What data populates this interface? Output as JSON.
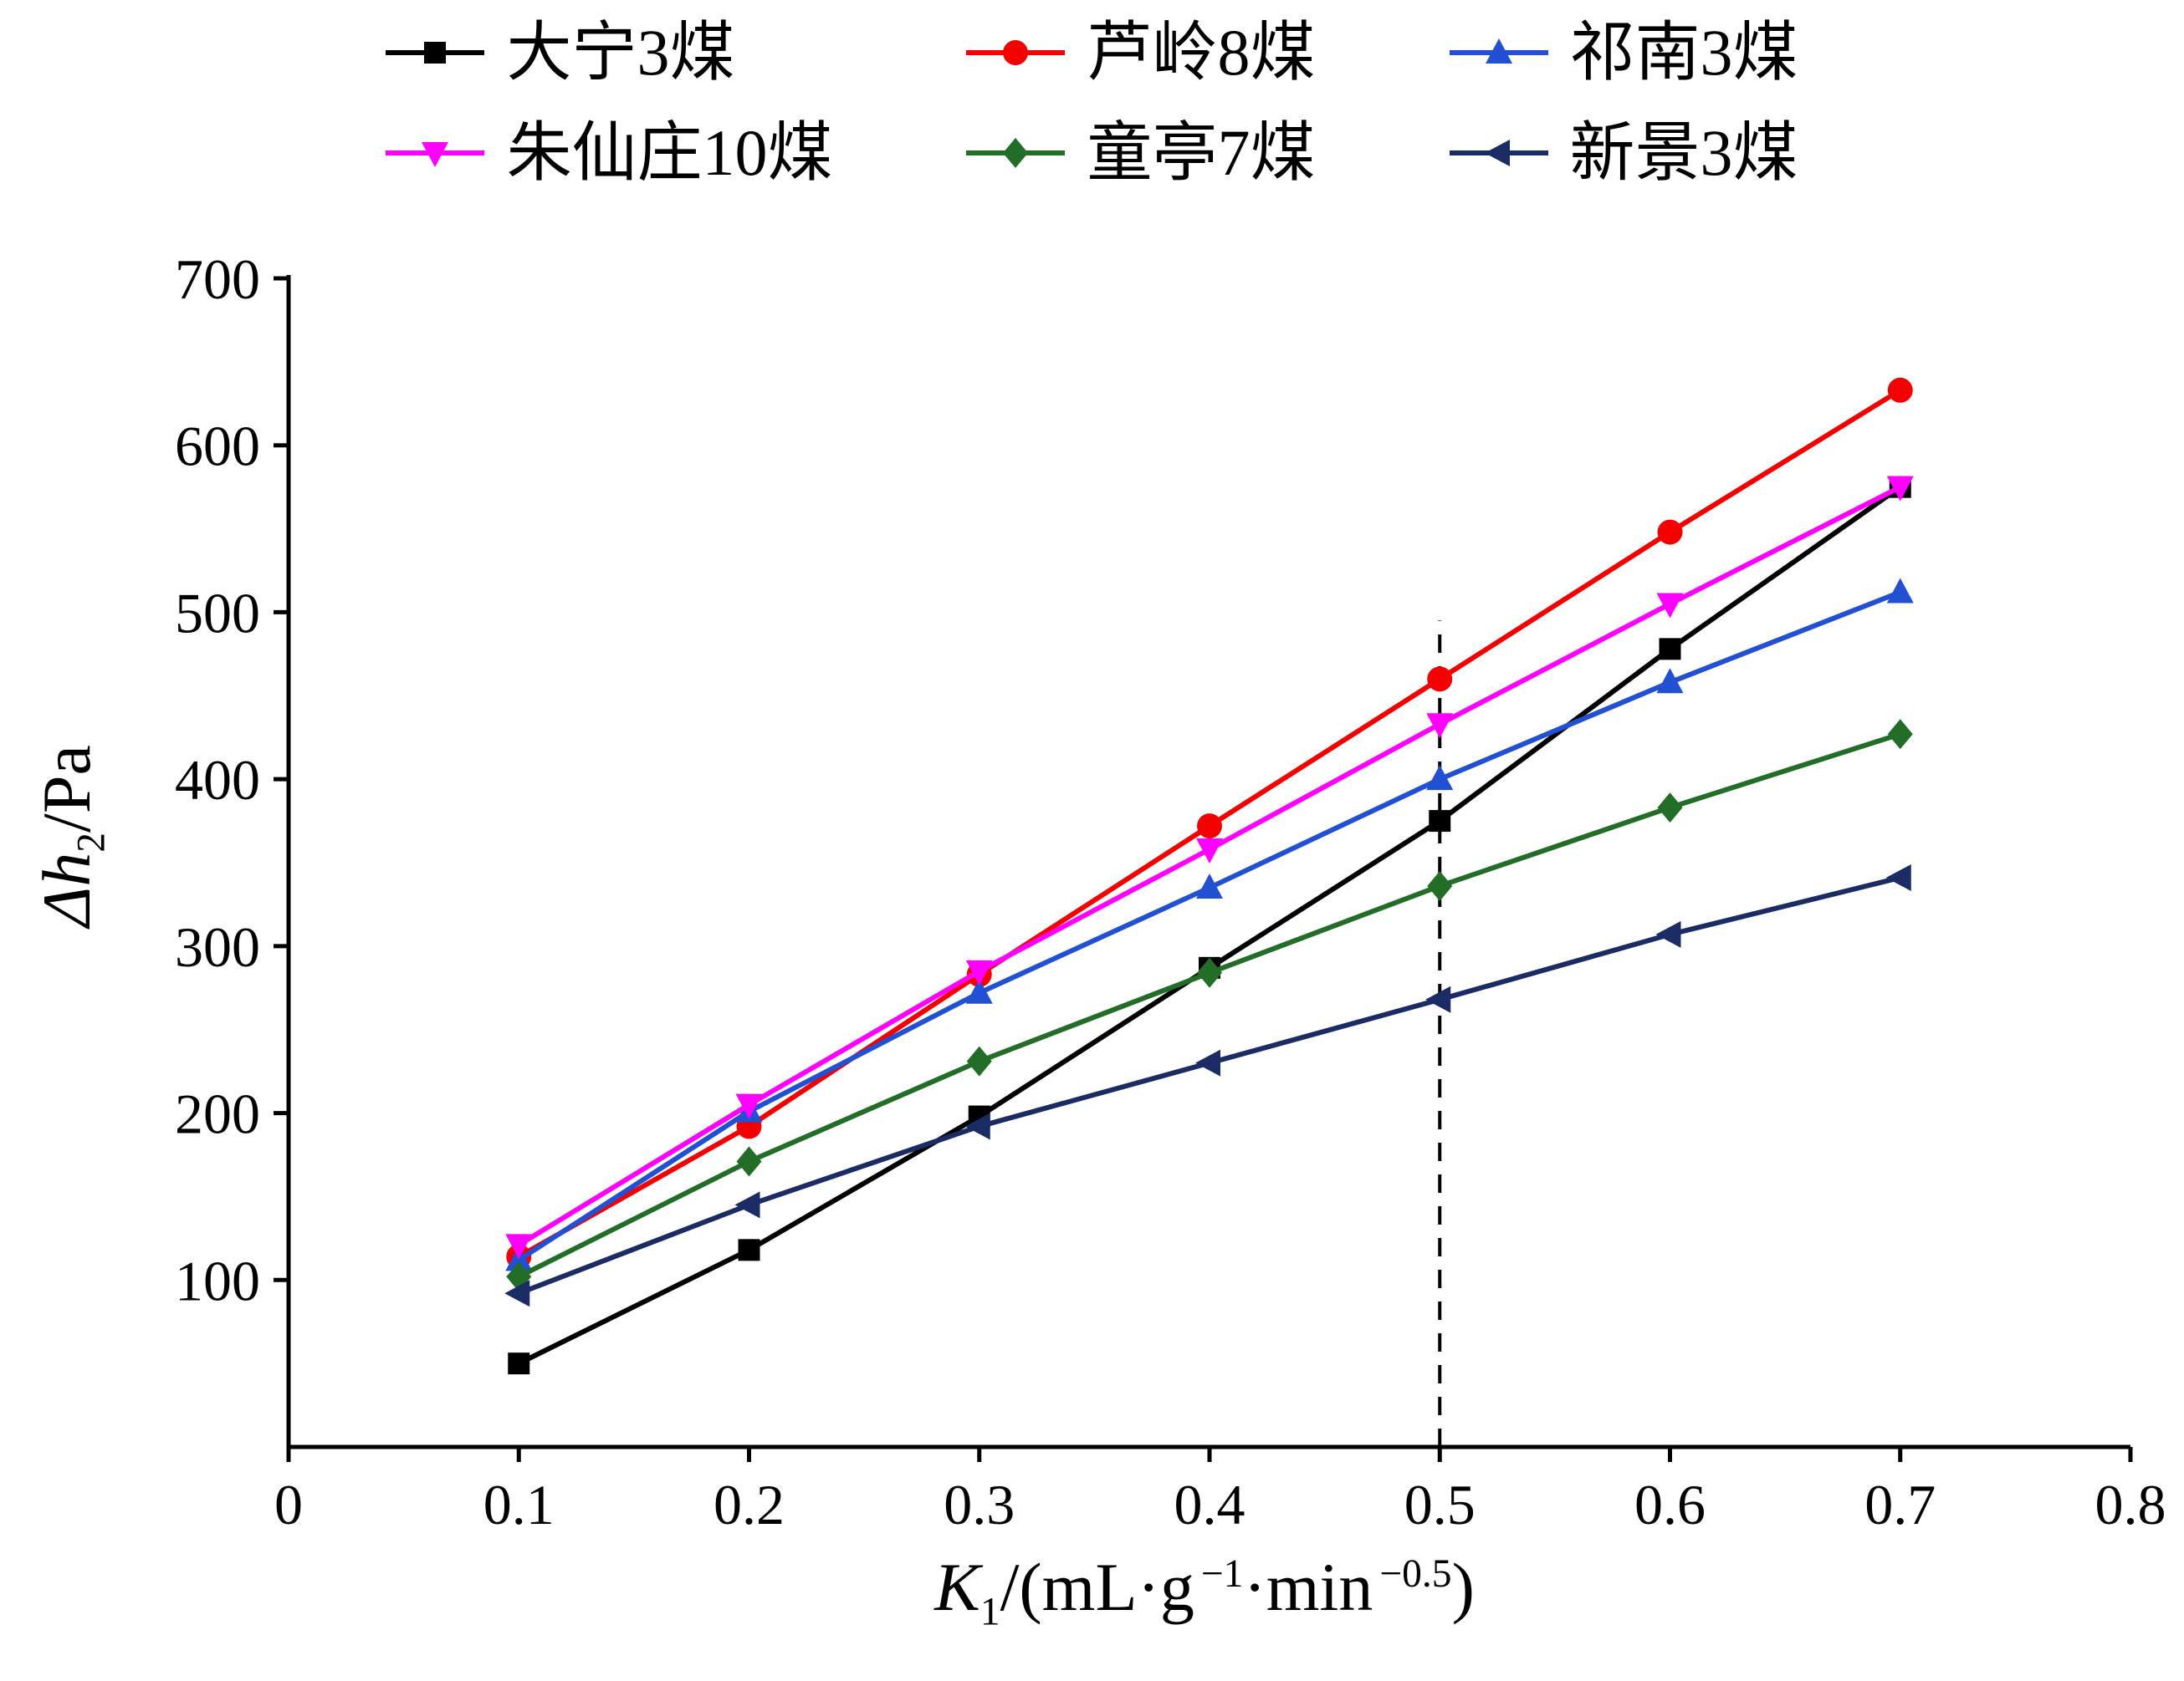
{
  "axes": {
    "xlabel": {
      "k": "K",
      "k_sub": "1",
      "part1": "/(mL·g",
      "sup1": "−1",
      "part2": "·min",
      "sup2": "−0.5",
      "part3": ")"
    },
    "ylabel": {
      "delta_h": "Δh",
      "sub": "2",
      "rest": "/Pa"
    }
  },
  "chart_data": {
    "type": "line",
    "x": [
      0.1,
      0.2,
      0.3,
      0.4,
      0.5,
      0.6,
      0.7
    ],
    "series": [
      {
        "name": "大宁3煤",
        "color": "#000000",
        "marker": "square",
        "values": [
          50,
          118,
          198,
          287,
          375,
          478,
          575
        ]
      },
      {
        "name": "芦岭8煤",
        "color": "#f40000",
        "marker": "circle",
        "values": [
          114,
          192,
          283,
          372,
          460,
          548,
          633
        ]
      },
      {
        "name": "祁南3煤",
        "color": "#2250d2",
        "marker": "triangle-up",
        "values": [
          112,
          201,
          272,
          335,
          400,
          458,
          512
        ]
      },
      {
        "name": "朱仙庄10煤",
        "color": "#ff00ff",
        "marker": "triangle-down",
        "values": [
          121,
          205,
          285,
          358,
          433,
          505,
          575
        ]
      },
      {
        "name": "童亭7煤",
        "color": "#226e28",
        "marker": "diamond",
        "values": [
          102,
          171,
          231,
          284,
          336,
          383,
          427
        ]
      },
      {
        "name": "新景3煤",
        "color": "#1b2b63",
        "marker": "triangle-left",
        "values": [
          92,
          145,
          192,
          230,
          268,
          307,
          341
        ]
      }
    ],
    "title": "",
    "xlabel": "K1/(mL·g−1·min−0.5)",
    "ylabel": "Δh2/Pa",
    "xlim": [
      0,
      0.8
    ],
    "ylim": [
      0,
      700
    ],
    "xticks": [
      {
        "value": 0,
        "label": "0"
      },
      {
        "value": 0.1,
        "label": "0.1"
      },
      {
        "value": 0.2,
        "label": "0.2"
      },
      {
        "value": 0.3,
        "label": "0.3"
      },
      {
        "value": 0.4,
        "label": "0.4"
      },
      {
        "value": 0.5,
        "label": "0.5"
      },
      {
        "value": 0.6,
        "label": "0.6"
      },
      {
        "value": 0.7,
        "label": "0.7"
      },
      {
        "value": 0.8,
        "label": "0.8"
      }
    ],
    "yticks": [
      {
        "value": 100,
        "label": "100"
      },
      {
        "value": 200,
        "label": "200"
      },
      {
        "value": 300,
        "label": "300"
      },
      {
        "value": 400,
        "label": "400"
      },
      {
        "value": 500,
        "label": "500"
      },
      {
        "value": 600,
        "label": "600"
      },
      {
        "value": 700,
        "label": "700"
      }
    ],
    "annotation": {
      "type": "dashed-vline",
      "x": 0.5,
      "y_from": 0,
      "y_to": 495,
      "color": "#000000"
    },
    "grid": false,
    "legend_position": "top",
    "legend_rows": 2,
    "legend_cols": 3
  }
}
